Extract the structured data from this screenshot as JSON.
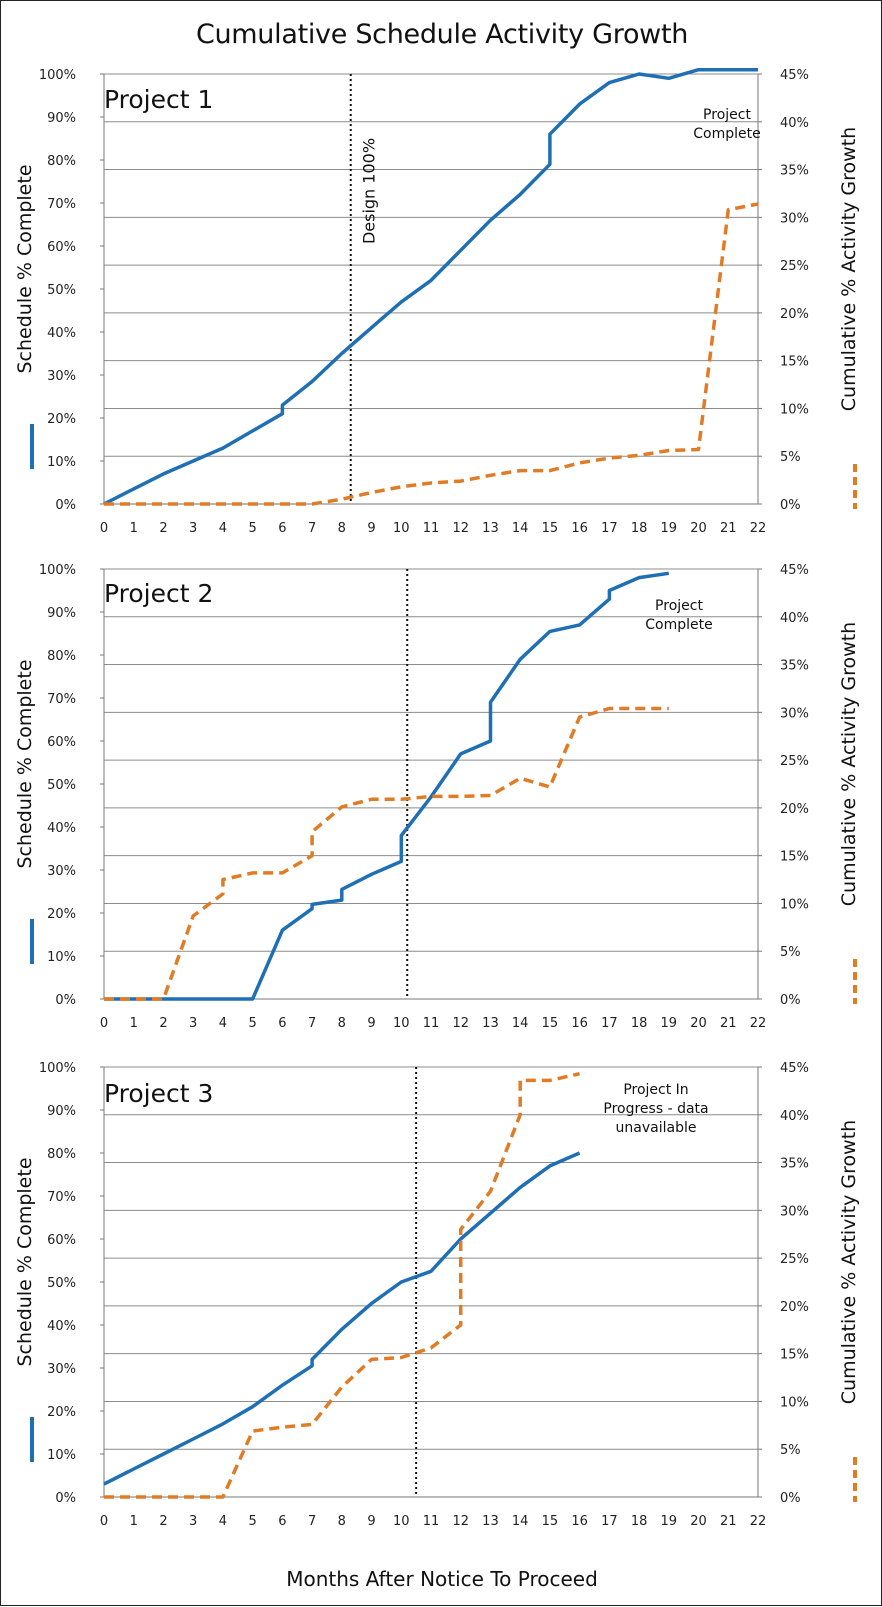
{
  "figure": {
    "title": "Cumulative Schedule Activity Growth",
    "x_axis_label": "Months After Notice To Proceed"
  },
  "colors": {
    "schedule_line": "#1f6fb5",
    "growth_line": "#e07b26",
    "gridline": "#8c8c8c",
    "marker_line": "#111111"
  },
  "chart_data": [
    {
      "type": "line",
      "title": "Project 1",
      "ylabel": "Schedule % Complete",
      "y2label": "Cumulative % Activity Growth",
      "xlim": [
        0,
        22
      ],
      "ylim": [
        0,
        100
      ],
      "y2lim": [
        0,
        45
      ],
      "x_ticks": [
        "0",
        "1",
        "2",
        "3",
        "4",
        "5",
        "6",
        "7",
        "8",
        "9",
        "10",
        "11",
        "12",
        "13",
        "14",
        "15",
        "16",
        "17",
        "18",
        "19",
        "20",
        "21",
        "22"
      ],
      "y_ticks": [
        "0%",
        "10%",
        "20%",
        "30%",
        "40%",
        "50%",
        "60%",
        "70%",
        "80%",
        "90%",
        "100%"
      ],
      "y2_ticks": [
        "0%",
        "5%",
        "10%",
        "15%",
        "20%",
        "25%",
        "30%",
        "35%",
        "40%",
        "45%"
      ],
      "grid": "horizontal at right-axis major ticks",
      "vertical_marker": {
        "x": 8.3,
        "label": "Design 100%"
      },
      "annotation": [
        "Project",
        "Complete"
      ],
      "series": [
        {
          "name": "Schedule % Complete",
          "axis": "left",
          "style": "solid",
          "x": [
            0,
            1,
            2,
            3,
            4,
            5,
            6,
            6,
            7,
            8,
            9,
            10,
            11,
            12,
            13,
            14,
            15,
            15,
            16,
            17,
            18,
            19,
            20,
            21,
            22
          ],
          "y": [
            0,
            3.5,
            7,
            10,
            13,
            17,
            21,
            23,
            28.5,
            35,
            41,
            47,
            52,
            59,
            66,
            72,
            79,
            86,
            93,
            98,
            100,
            99,
            101,
            101,
            101
          ]
        },
        {
          "name": "Cumulative % Activity Growth",
          "axis": "right",
          "style": "dashed",
          "x": [
            0,
            1,
            2,
            3,
            4,
            5,
            6,
            7,
            8,
            9,
            10,
            11,
            12,
            13,
            14,
            15,
            16,
            17,
            18,
            19,
            20,
            21,
            22
          ],
          "y": [
            0,
            0,
            0,
            0,
            0,
            0,
            0,
            0,
            0.5,
            1.2,
            1.8,
            2.2,
            2.4,
            3.0,
            3.5,
            3.5,
            4.3,
            4.8,
            5.1,
            5.6,
            5.7,
            30.8,
            31.4
          ]
        }
      ]
    },
    {
      "type": "line",
      "title": "Project 2",
      "ylabel": "Schedule % Complete",
      "y2label": "Cumulative % Activity Growth",
      "xlim": [
        0,
        22
      ],
      "ylim": [
        0,
        100
      ],
      "y2lim": [
        0,
        45
      ],
      "x_ticks": [
        "0",
        "1",
        "2",
        "3",
        "4",
        "5",
        "6",
        "7",
        "8",
        "9",
        "10",
        "11",
        "12",
        "13",
        "14",
        "15",
        "16",
        "17",
        "18",
        "19",
        "20",
        "21",
        "22"
      ],
      "y_ticks": [
        "0%",
        "10%",
        "20%",
        "30%",
        "40%",
        "50%",
        "60%",
        "70%",
        "80%",
        "90%",
        "100%"
      ],
      "y2_ticks": [
        "0%",
        "5%",
        "10%",
        "15%",
        "20%",
        "25%",
        "30%",
        "35%",
        "40%",
        "45%"
      ],
      "grid": "horizontal at right-axis major ticks",
      "vertical_marker": {
        "x": 10.2,
        "label": ""
      },
      "annotation": [
        "Project",
        "Complete"
      ],
      "series": [
        {
          "name": "Schedule % Complete",
          "axis": "left",
          "style": "solid",
          "x": [
            0,
            1,
            2,
            3,
            4,
            5,
            6,
            7,
            7,
            8,
            8,
            9,
            10,
            10,
            11,
            12,
            13,
            13,
            14,
            15,
            16,
            17,
            17,
            18,
            19
          ],
          "y": [
            0,
            0,
            0,
            0,
            0,
            0,
            16,
            21,
            22,
            23,
            25.5,
            29,
            32,
            38,
            47,
            57,
            60,
            69,
            79,
            85.5,
            87,
            93,
            95,
            98,
            99
          ]
        },
        {
          "name": "Cumulative % Activity Growth",
          "axis": "right",
          "style": "dashed",
          "x": [
            0,
            1,
            2,
            3,
            4,
            4,
            5,
            6,
            7,
            7,
            8,
            9,
            10,
            11,
            12,
            13,
            14,
            15,
            16,
            17,
            18,
            19
          ],
          "y": [
            0,
            0,
            0,
            8.7,
            11,
            12.5,
            13.2,
            13.2,
            15,
            17.5,
            20.1,
            20.9,
            20.9,
            21.2,
            21.2,
            21.3,
            23.1,
            22.2,
            29.5,
            30.4,
            30.4,
            30.4
          ]
        }
      ]
    },
    {
      "type": "line",
      "title": "Project 3",
      "ylabel": "Schedule % Complete",
      "y2label": "Cumulative % Activity Growth",
      "xlim": [
        0,
        22
      ],
      "ylim": [
        0,
        100
      ],
      "y2lim": [
        0,
        45
      ],
      "x_ticks": [
        "0",
        "1",
        "2",
        "3",
        "4",
        "5",
        "6",
        "7",
        "8",
        "9",
        "10",
        "11",
        "12",
        "13",
        "14",
        "15",
        "16",
        "17",
        "18",
        "19",
        "20",
        "21",
        "22"
      ],
      "y_ticks": [
        "0%",
        "10%",
        "20%",
        "30%",
        "40%",
        "50%",
        "60%",
        "70%",
        "80%",
        "90%",
        "100%"
      ],
      "y2_ticks": [
        "0%",
        "5%",
        "10%",
        "15%",
        "20%",
        "25%",
        "30%",
        "35%",
        "40%",
        "45%"
      ],
      "grid": "horizontal at right-axis major ticks",
      "vertical_marker": {
        "x": 10.5,
        "label": ""
      },
      "annotation": [
        "Project In",
        "Progress - data",
        "unavailable"
      ],
      "series": [
        {
          "name": "Schedule % Complete",
          "axis": "left",
          "style": "solid",
          "x": [
            0,
            1,
            2,
            3,
            4,
            5,
            6,
            7,
            7,
            8,
            9,
            10,
            11,
            12,
            13,
            14,
            15,
            16
          ],
          "y": [
            3,
            6.5,
            10,
            13.5,
            17,
            21,
            26,
            30.5,
            32,
            39,
            45,
            50,
            52.5,
            60,
            66,
            72,
            77,
            80
          ]
        },
        {
          "name": "Cumulative % Activity Growth",
          "axis": "right",
          "style": "dashed",
          "x": [
            0,
            1,
            2,
            3,
            4,
            5,
            6,
            7,
            8,
            9,
            10,
            11,
            12,
            12,
            13,
            14,
            14,
            15,
            16
          ],
          "y": [
            0,
            0,
            0,
            0,
            0,
            6.9,
            7.3,
            7.6,
            11.5,
            14.4,
            14.6,
            15.6,
            18.0,
            28.0,
            32.0,
            40.0,
            43.6,
            43.6,
            44.3
          ]
        }
      ]
    }
  ]
}
